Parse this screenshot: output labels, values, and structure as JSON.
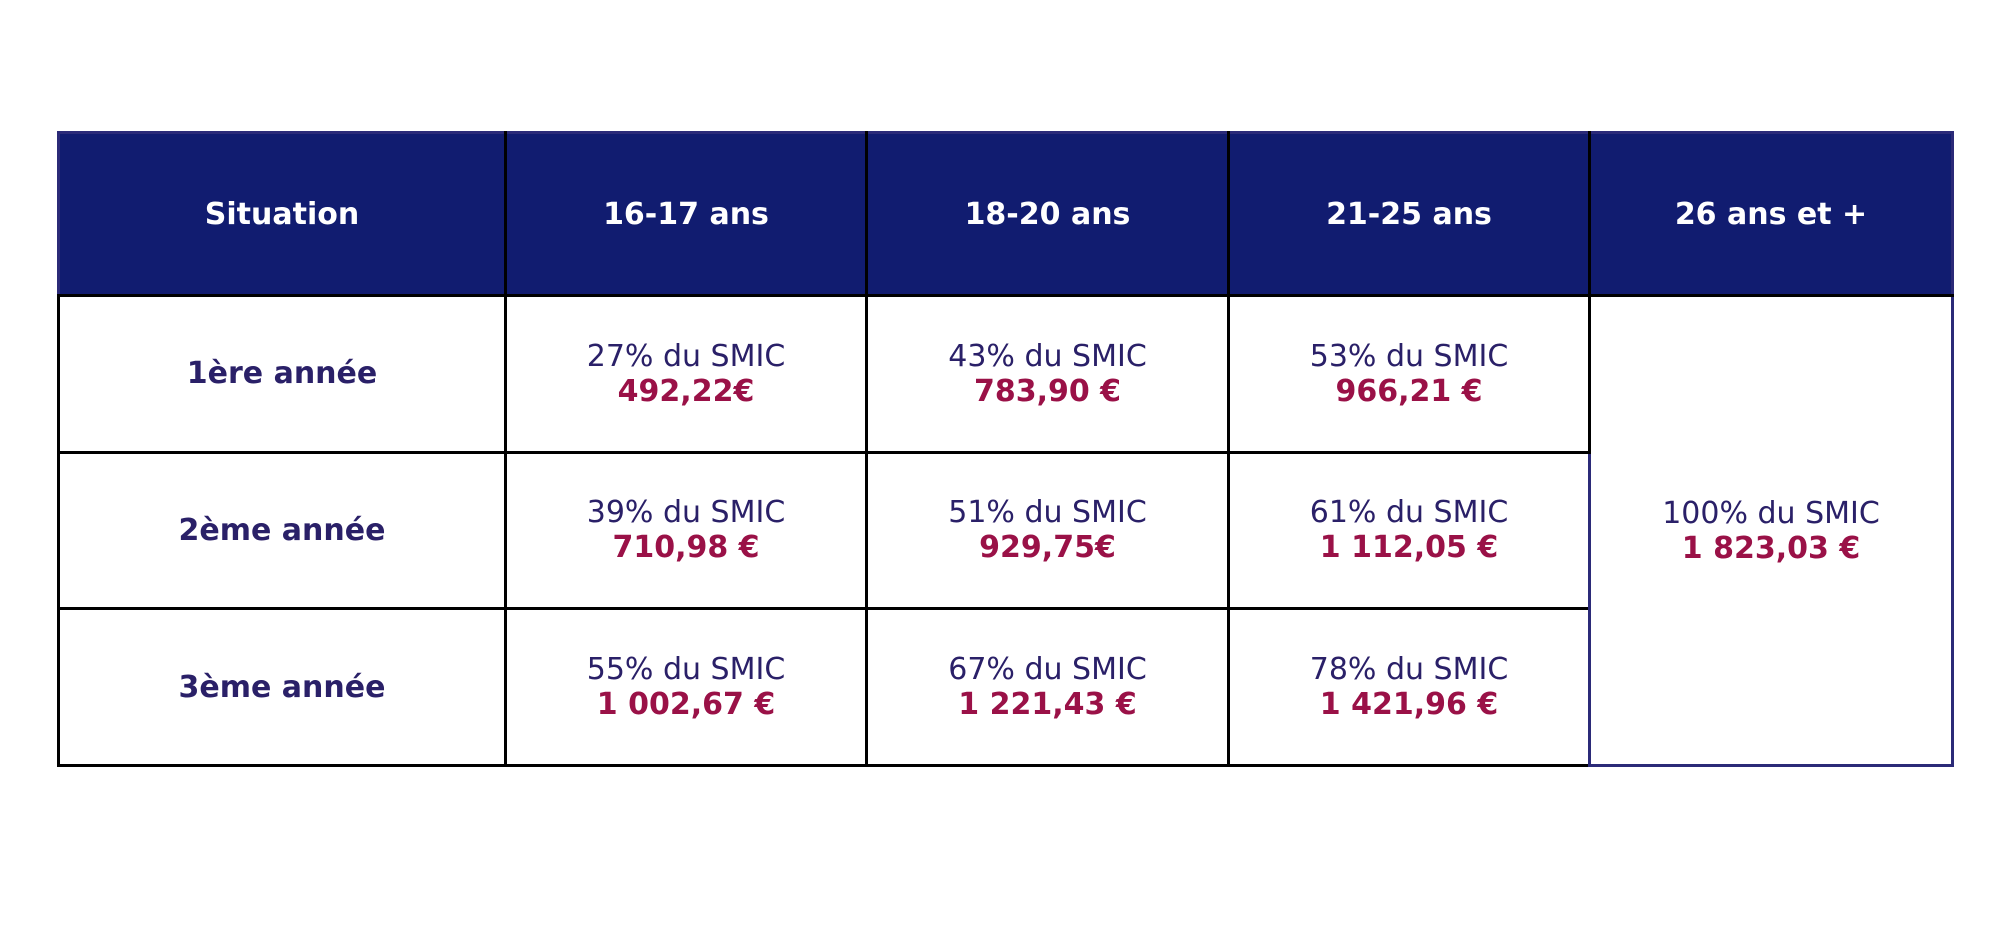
{
  "table": {
    "header": [
      "Situation",
      "16-17 ans",
      "18-20 ans",
      "21-25 ans",
      "26 ans et +"
    ],
    "rows": [
      {
        "label": "1ère année",
        "cells": [
          {
            "rate": "27% du SMIC",
            "amount": "492,22€"
          },
          {
            "rate": "43% du SMIC",
            "amount": "783,90 €"
          },
          {
            "rate": "53% du SMIC",
            "amount": "966,21 €"
          }
        ]
      },
      {
        "label": "2ème année",
        "cells": [
          {
            "rate": "39% du SMIC",
            "amount": "710,98 €"
          },
          {
            "rate": "51% du SMIC",
            "amount": "929,75€"
          },
          {
            "rate": "61% du SMIC",
            "amount": "1 112,05 €"
          }
        ]
      },
      {
        "label": "3ème année",
        "cells": [
          {
            "rate": "55% du SMIC",
            "amount": "1 002,67 €"
          },
          {
            "rate": "67% du SMIC",
            "amount": "1 221,43 €"
          },
          {
            "rate": "78% du SMIC",
            "amount": "1 421,96 €"
          }
        ]
      }
    ],
    "merged_cell": {
      "rate": "100% du SMIC",
      "amount": "1 823,03 €"
    }
  }
}
